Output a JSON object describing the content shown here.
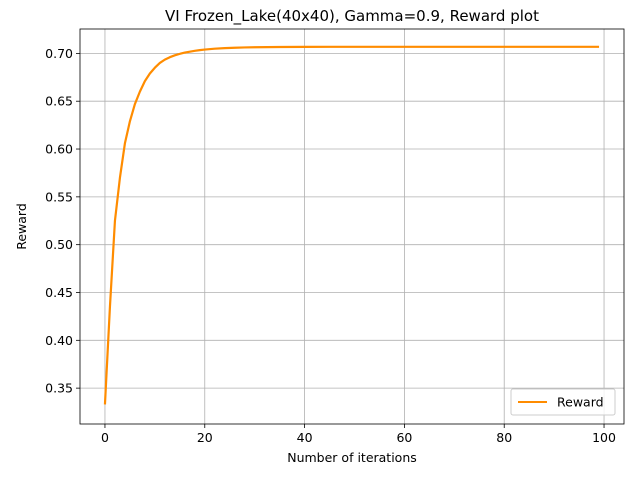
{
  "chart_data": {
    "type": "line",
    "title": "VI Frozen_Lake(40x40), Gamma=0.9, Reward plot",
    "xlabel": "Number of iterations",
    "ylabel": "Reward",
    "xlim": [
      -5,
      104
    ],
    "ylim": [
      0.3125,
      0.7255
    ],
    "xticks": [
      0,
      20,
      40,
      60,
      80,
      100
    ],
    "yticks": [
      0.35,
      0.4,
      0.45,
      0.5,
      0.55,
      0.6,
      0.65,
      0.7
    ],
    "xtick_labels": [
      "0",
      "20",
      "40",
      "60",
      "80",
      "100"
    ],
    "ytick_labels": [
      "0.35",
      "0.40",
      "0.45",
      "0.50",
      "0.55",
      "0.60",
      "0.65",
      "0.70"
    ],
    "grid": true,
    "legend_position": "lower-right",
    "series": [
      {
        "name": "Reward",
        "color": "#ff8c00",
        "x": [
          0,
          1,
          2,
          3,
          4,
          5,
          6,
          7,
          8,
          9,
          10,
          11,
          12,
          13,
          14,
          15,
          16,
          17,
          18,
          19,
          20,
          22,
          24,
          26,
          28,
          30,
          35,
          40,
          45,
          50,
          60,
          70,
          80,
          90,
          99
        ],
        "y": [
          0.333,
          0.435,
          0.525,
          0.57,
          0.606,
          0.629,
          0.647,
          0.66,
          0.671,
          0.679,
          0.685,
          0.69,
          0.6935,
          0.696,
          0.698,
          0.6995,
          0.7008,
          0.7018,
          0.7027,
          0.7034,
          0.704,
          0.7049,
          0.7055,
          0.7059,
          0.7062,
          0.7064,
          0.7067,
          0.7068,
          0.7069,
          0.7069,
          0.7069,
          0.7069,
          0.7069,
          0.7069,
          0.7069
        ]
      }
    ]
  }
}
